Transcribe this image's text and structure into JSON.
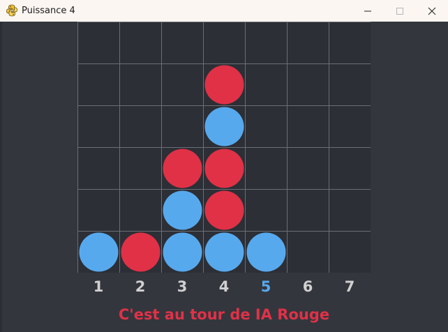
{
  "window": {
    "title": "Puissance 4",
    "icon": "python-icon"
  },
  "colors": {
    "background": "#33363d",
    "board": "#2c2f35",
    "grid": "#6b6e74",
    "red": "#e03147",
    "blue": "#57a9ee",
    "label": "#d0d0d0",
    "active_label": "#57a9ee"
  },
  "board": {
    "columns": 7,
    "rows": 6,
    "cells": [
      [
        "",
        "",
        "",
        "",
        "",
        "",
        ""
      ],
      [
        "",
        "",
        "",
        "R",
        "",
        "",
        ""
      ],
      [
        "",
        "",
        "",
        "B",
        "",
        "",
        ""
      ],
      [
        "",
        "",
        "R",
        "R",
        "",
        "",
        ""
      ],
      [
        "",
        "",
        "B",
        "R",
        "",
        "",
        ""
      ],
      [
        "B",
        "R",
        "B",
        "B",
        "B",
        "",
        ""
      ]
    ]
  },
  "column_labels": [
    "1",
    "2",
    "3",
    "4",
    "5",
    "6",
    "7"
  ],
  "active_column": 5,
  "status": {
    "text": "C'est au tour de IA Rouge",
    "color": "#e03147"
  }
}
